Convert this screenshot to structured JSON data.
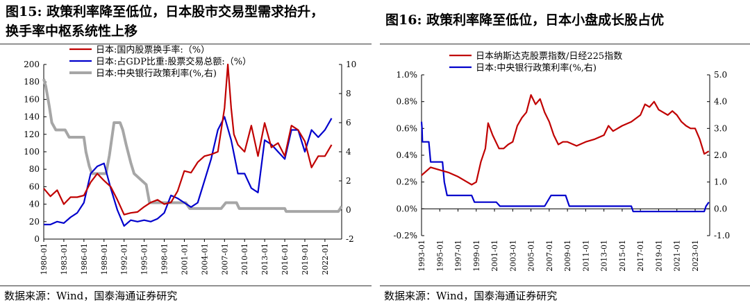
{
  "left": {
    "title_label": "图15:",
    "title_line1": "政策利率降至低位，日本股市交易型需求抬升，",
    "title_line2": "换手率中枢系统性上移",
    "source": "数据来源：Wind，国泰海通证券研究"
  },
  "right": {
    "title_label": "图16:",
    "title_line1": "政策利率降至低位，日本小盘成长股占优",
    "source": "数据来源：Wind，国泰海通证券研究"
  },
  "chart_data": [
    {
      "type": "line",
      "x_ticks": [
        "1980-01",
        "1983-01",
        "1986-01",
        "1989-01",
        "1992-01",
        "1995-01",
        "1998-01",
        "2001-01",
        "2004-01",
        "2007-01",
        "2010-01",
        "2013-01",
        "2016-01",
        "2019-01",
        "2022-01"
      ],
      "xlim": [
        1980.0,
        2024.5
      ],
      "ylim": [
        0,
        200
      ],
      "y_ticks": [
        "0",
        "20",
        "40",
        "60",
        "80",
        "100",
        "120",
        "140",
        "160",
        "180",
        "200"
      ],
      "y2lim": [
        -2,
        10
      ],
      "y2_ticks": [
        "-2",
        "0",
        "2",
        "4",
        "6",
        "8",
        "10"
      ],
      "legend_position": "top",
      "grid": false,
      "series": [
        {
          "name": "日本:国内股票换手率:（%）",
          "axis": "left",
          "color": "#c00000",
          "x": [
            1980,
            1981,
            1982,
            1983,
            1984,
            1985,
            1986,
            1987,
            1988,
            1989,
            1990,
            1991,
            1992,
            1993,
            1994,
            1995,
            1996,
            1997,
            1998,
            1999,
            2000,
            2001,
            2002,
            2003,
            2004,
            2005,
            2006,
            2007,
            2007.5,
            2008,
            2008.4,
            2009,
            2010,
            2011,
            2012,
            2013,
            2014,
            2015,
            2016,
            2017,
            2018,
            2019,
            2020,
            2021,
            2022,
            2023
          ],
          "y": [
            58,
            49,
            56,
            40,
            48,
            48,
            50,
            65,
            75,
            67,
            60,
            45,
            28,
            30,
            31,
            37,
            42,
            45,
            40,
            42,
            55,
            78,
            76,
            88,
            95,
            97,
            100,
            150,
            200,
            150,
            120,
            108,
            100,
            130,
            95,
            133,
            105,
            110,
            95,
            130,
            125,
            112,
            82,
            95,
            95,
            108
          ]
        },
        {
          "name": "日本:占GDP比重:股票交易总额:（%）",
          "axis": "right",
          "color": "#0000cc",
          "x": [
            1980,
            1981,
            1982,
            1983,
            1984,
            1985,
            1986,
            1987,
            1988,
            1989,
            1990,
            1991,
            1992,
            1993,
            1994,
            1995,
            1996,
            1997,
            1998,
            1999,
            2000,
            2001,
            2002,
            2003,
            2004,
            2005,
            2006,
            2007,
            2008,
            2009,
            2010,
            2011,
            2012,
            2013,
            2014,
            2015,
            2016,
            2017,
            2018,
            2019,
            2020,
            2021,
            2022,
            2023
          ],
          "y": [
            -1.0,
            -1.0,
            -0.8,
            -0.9,
            -0.5,
            -0.2,
            0.5,
            2.5,
            3.0,
            3.2,
            1.5,
            0.0,
            -1.1,
            -0.7,
            -0.8,
            -0.7,
            -0.8,
            -0.6,
            -0.2,
            1.0,
            0.8,
            0.5,
            0.2,
            0.5,
            2.0,
            3.5,
            5.5,
            6.4,
            4.8,
            2.5,
            2.5,
            1.5,
            1.2,
            4.8,
            4.5,
            4.0,
            3.5,
            5.5,
            5.5,
            4.0,
            5.5,
            5.0,
            5.5,
            6.3
          ]
        },
        {
          "name": "日本:中央银行政策利率(%,右)",
          "axis": "right",
          "color": "#a6a6a6",
          "x": [
            1980,
            1980.3,
            1980.8,
            1981.2,
            1981.8,
            1983.2,
            1983.8,
            1986.0,
            1986.3,
            1986.8,
            1987.2,
            1989.3,
            1989.8,
            1990.5,
            1991.4,
            1991.8,
            1992.3,
            1993.0,
            1993.5,
            1995.3,
            1995.8,
            2001.2,
            2001.8,
            2006.5,
            2007.2,
            2008.8,
            2009.2,
            2016.0,
            2016.2,
            2024.0,
            2024.3,
            2024.5
          ],
          "y": [
            9.0,
            8.5,
            7.2,
            6.0,
            5.5,
            5.5,
            5.0,
            5.0,
            4.0,
            3.0,
            2.5,
            2.5,
            3.75,
            6.0,
            6.0,
            5.5,
            4.5,
            3.25,
            2.5,
            1.75,
            0.5,
            0.5,
            0.1,
            0.1,
            0.5,
            0.5,
            0.1,
            0.1,
            -0.1,
            -0.1,
            0.1,
            0.25
          ]
        }
      ]
    },
    {
      "type": "line",
      "x_ticks": [
        "1993-01",
        "1995-01",
        "1997-01",
        "1999-01",
        "2001-01",
        "2003-01",
        "2005-01",
        "2007-01",
        "2009-01",
        "2011-01",
        "2013-01",
        "2015-01",
        "2017-01",
        "2019-01",
        "2021-01",
        "2023-01"
      ],
      "xlim": [
        1993.0,
        2024.6
      ],
      "ylim": [
        -0.2,
        1.0
      ],
      "y_ticks": [
        "-0.2%",
        "0.0%",
        "0.2%",
        "0.4%",
        "0.6%",
        "0.8%",
        "1.0%"
      ],
      "y2lim": [
        -1.0,
        5.0
      ],
      "y2_ticks": [
        "-1.0",
        "0.0",
        "1.0",
        "2.0",
        "3.0",
        "4.0",
        "5.0"
      ],
      "legend_position": "top",
      "grid": false,
      "series": [
        {
          "name": "日本纳斯达克股票指数/日经225指数",
          "axis": "left",
          "color": "#c00000",
          "x": [
            1993.0,
            1994.0,
            1995.0,
            1996.0,
            1997.0,
            1998.0,
            1998.5,
            1999.0,
            1999.5,
            2000.0,
            2000.3,
            2000.8,
            2001.5,
            2002.0,
            2002.5,
            2003.0,
            2003.5,
            2004.0,
            2004.5,
            2005.0,
            2005.5,
            2006.0,
            2006.5,
            2007.0,
            2007.5,
            2008.0,
            2008.5,
            2009.0,
            2010.0,
            2011.0,
            2012.0,
            2013.0,
            2013.5,
            2014.0,
            2015.0,
            2016.0,
            2017.0,
            2017.5,
            2018.0,
            2018.5,
            2019.0,
            2020.0,
            2020.5,
            2021.0,
            2021.5,
            2022.0,
            2022.5,
            2023.0,
            2023.5,
            2024.0,
            2024.5
          ],
          "y": [
            0.25,
            0.31,
            0.29,
            0.27,
            0.24,
            0.2,
            0.18,
            0.2,
            0.35,
            0.45,
            0.64,
            0.55,
            0.45,
            0.45,
            0.48,
            0.5,
            0.62,
            0.68,
            0.72,
            0.85,
            0.78,
            0.82,
            0.72,
            0.65,
            0.55,
            0.48,
            0.5,
            0.5,
            0.47,
            0.5,
            0.52,
            0.55,
            0.62,
            0.58,
            0.62,
            0.65,
            0.7,
            0.78,
            0.76,
            0.8,
            0.74,
            0.7,
            0.73,
            0.7,
            0.65,
            0.62,
            0.6,
            0.6,
            0.52,
            0.41,
            0.43
          ]
        },
        {
          "name": "日本:中央银行政策利率(%,右)",
          "axis": "right",
          "color": "#0000cc",
          "x": [
            1993.0,
            1993.05,
            1993.1,
            1993.8,
            1994.0,
            1995.3,
            1995.5,
            1995.8,
            1996.0,
            1998.5,
            1998.8,
            2001.2,
            2001.6,
            2006.5,
            2007.2,
            2008.8,
            2009.2,
            2016.0,
            2016.2,
            2024.0,
            2024.2,
            2024.5
          ],
          "y": [
            3.25,
            3.0,
            2.5,
            2.5,
            1.75,
            1.75,
            1.0,
            0.5,
            0.5,
            0.5,
            0.25,
            0.25,
            0.1,
            0.1,
            0.5,
            0.5,
            0.1,
            0.1,
            -0.1,
            -0.1,
            0.1,
            0.25
          ]
        }
      ]
    }
  ]
}
